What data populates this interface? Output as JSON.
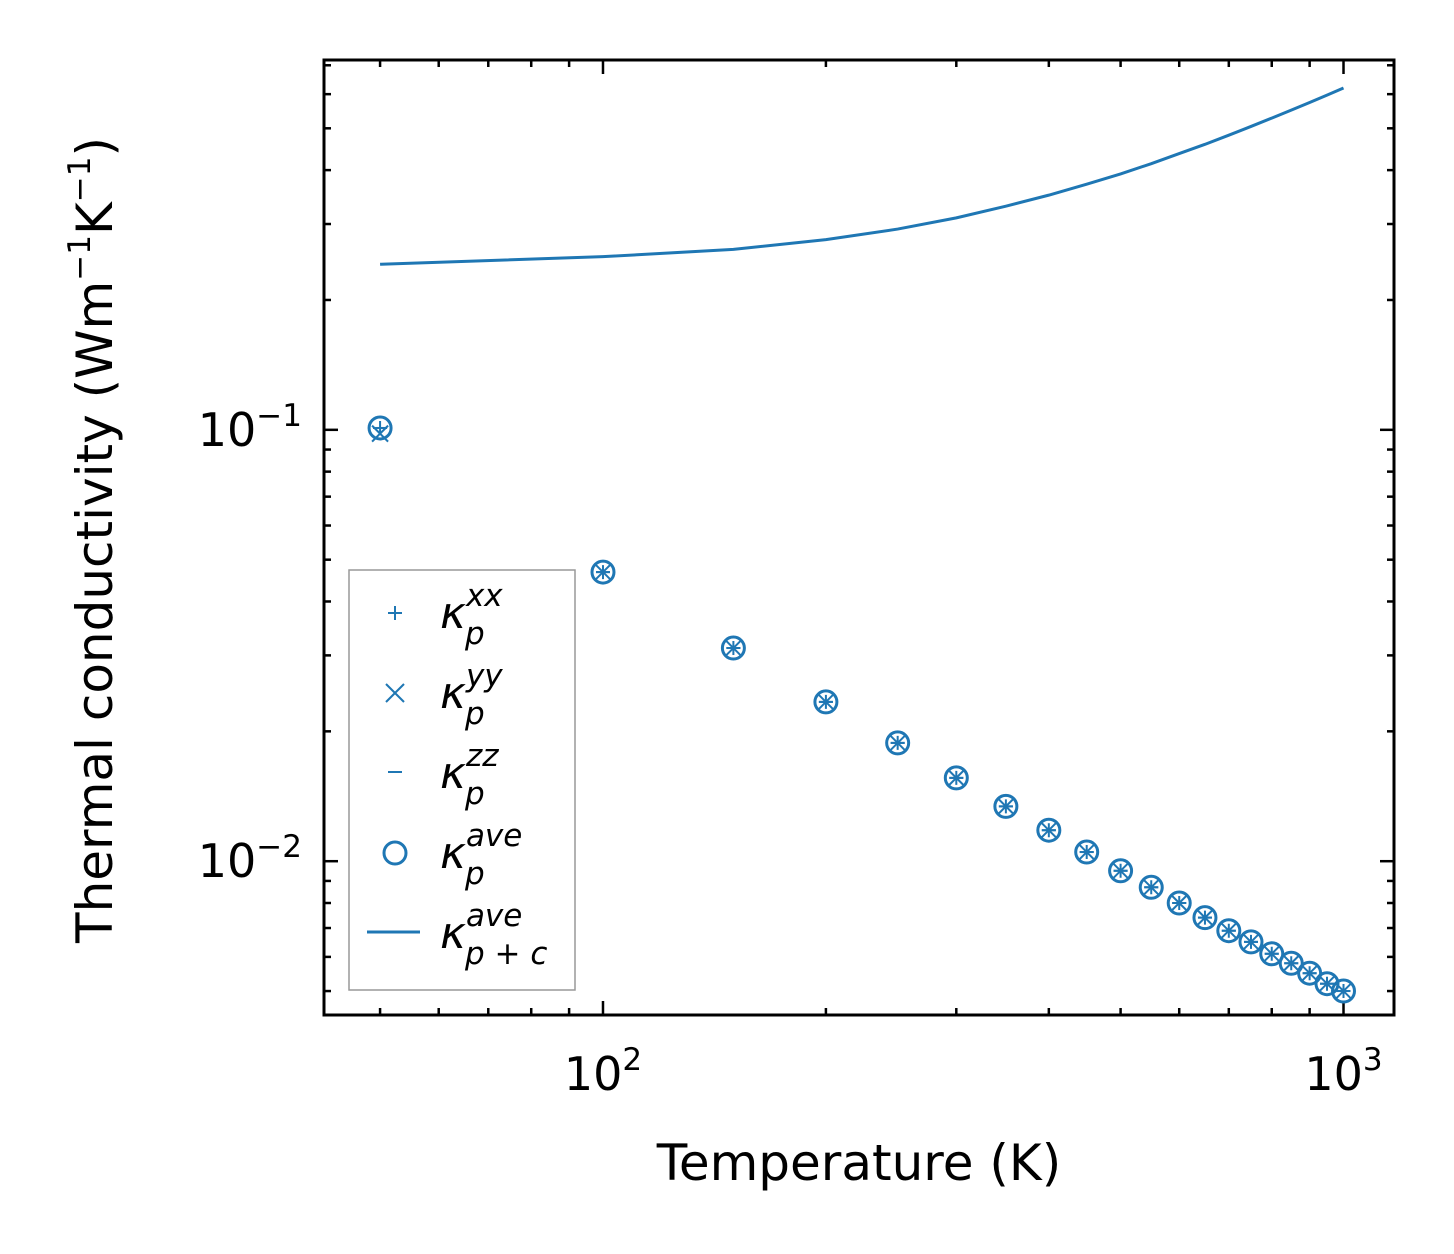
{
  "chart_data": {
    "type": "scatter",
    "xscale": "log",
    "yscale": "log",
    "xlim": [
      42,
      1170
    ],
    "ylim": [
      0.0044,
      0.72
    ],
    "xlabel": "Temperature (K)",
    "ylabel": {
      "base": "Thermal conductivity (Wm",
      "exp1": "−1",
      "mid": "K",
      "exp2": "−1",
      "end": ")"
    },
    "x_ticks": [
      {
        "value": 100,
        "base": "10",
        "exp": "2"
      },
      {
        "value": 1000,
        "base": "10",
        "exp": "3"
      }
    ],
    "y_ticks": [
      {
        "value": 0.1,
        "base": "10",
        "exp": "−1"
      },
      {
        "value": 0.01,
        "base": "10",
        "exp": "−2"
      }
    ],
    "color": "#1f77b4",
    "x": [
      50,
      100,
      150,
      200,
      250,
      300,
      350,
      400,
      450,
      500,
      550,
      600,
      650,
      700,
      750,
      800,
      850,
      900,
      950,
      1000
    ],
    "series": [
      {
        "name": "kappa_p_xx",
        "symbol": "κ",
        "sub": "p",
        "sup": "xx",
        "marker": "plus",
        "values": [
          0.101,
          0.0468,
          0.0312,
          0.0234,
          0.0188,
          0.0156,
          0.0134,
          0.0118,
          0.0105,
          0.0095,
          0.0087,
          0.008,
          0.0074,
          0.0069,
          0.0065,
          0.0061,
          0.0058,
          0.0055,
          0.0052,
          0.005
        ]
      },
      {
        "name": "kappa_p_yy",
        "symbol": "κ",
        "sub": "p",
        "sup": "yy",
        "marker": "x",
        "values": [
          0.098,
          0.0468,
          0.0312,
          0.0234,
          0.0188,
          0.0156,
          0.0134,
          0.0118,
          0.0105,
          0.0095,
          0.0087,
          0.008,
          0.0074,
          0.0069,
          0.0065,
          0.0061,
          0.0058,
          0.0055,
          0.0052,
          0.005
        ]
      },
      {
        "name": "kappa_p_zz",
        "symbol": "κ",
        "sub": "p",
        "sup": "zz",
        "marker": "hline",
        "values": [
          0.101,
          0.0468,
          0.0312,
          0.0234,
          0.0188,
          0.0156,
          0.0134,
          0.0118,
          0.0105,
          0.0095,
          0.0087,
          0.008,
          0.0074,
          0.0069,
          0.0065,
          0.0061,
          0.0058,
          0.0055,
          0.0052,
          0.005
        ]
      },
      {
        "name": "kappa_p_ave",
        "symbol": "κ",
        "sub": "p",
        "sup": "ave",
        "marker": "circle",
        "values": [
          0.101,
          0.0468,
          0.0312,
          0.0234,
          0.0188,
          0.0156,
          0.0134,
          0.0118,
          0.0105,
          0.0095,
          0.0087,
          0.008,
          0.0074,
          0.0069,
          0.0065,
          0.0061,
          0.0058,
          0.0055,
          0.0052,
          0.005
        ]
      },
      {
        "name": "kappa_pc_ave",
        "symbol": "κ",
        "sub": "p + c",
        "sup": "ave",
        "marker": "line",
        "values": [
          0.242,
          0.252,
          0.262,
          0.276,
          0.292,
          0.31,
          0.33,
          0.35,
          0.371,
          0.392,
          0.414,
          0.437,
          0.459,
          0.482,
          0.505,
          0.528,
          0.551,
          0.574,
          0.597,
          0.62
        ]
      }
    ],
    "legend": {
      "position": "lower-left"
    }
  }
}
